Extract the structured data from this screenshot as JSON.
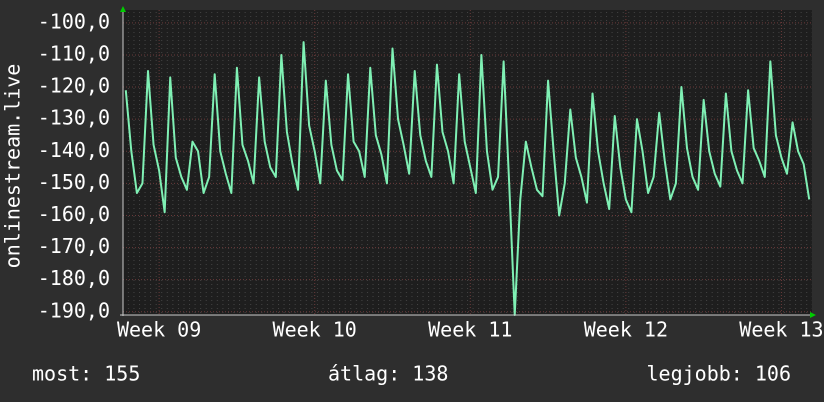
{
  "chart_data": {
    "type": "line",
    "y_label": "onlinestream.live",
    "categories": [
      null,
      null,
      null,
      null,
      null,
      null,
      "Week 09",
      null,
      null,
      null,
      null,
      null,
      null,
      null,
      null,
      null,
      null,
      null,
      null,
      null,
      null,
      null,
      null,
      null,
      null,
      null,
      null,
      null,
      null,
      null,
      null,
      null,
      null,
      null,
      "Week 10",
      null,
      null,
      null,
      null,
      null,
      null,
      null,
      null,
      null,
      null,
      null,
      null,
      null,
      null,
      null,
      null,
      null,
      null,
      null,
      null,
      null,
      null,
      null,
      null,
      null,
      null,
      null,
      "Week 11",
      null,
      null,
      null,
      null,
      null,
      null,
      null,
      null,
      null,
      null,
      null,
      null,
      null,
      null,
      null,
      null,
      null,
      null,
      null,
      null,
      null,
      null,
      null,
      null,
      null,
      null,
      null,
      "Week 12",
      null,
      null,
      null,
      null,
      null,
      null,
      null,
      null,
      null,
      null,
      null,
      null,
      null,
      null,
      null,
      null,
      null,
      null,
      null,
      null,
      null,
      null,
      null,
      null,
      null,
      null,
      null,
      "Week 13",
      null,
      null,
      null,
      null,
      null
    ],
    "series": [
      {
        "name": "onlinestream.live",
        "color": "#7ff0b4",
        "values": [
          -121,
          -140,
          -153,
          -150,
          -115,
          -138,
          -146,
          -159,
          -117,
          -142,
          -148,
          -152,
          -137,
          -140,
          -153,
          -148,
          -116,
          -140,
          -147,
          -153,
          -114,
          -138,
          -143,
          -150,
          -117,
          -137,
          -145,
          -148,
          -110,
          -134,
          -144,
          -152,
          -106,
          -132,
          -140,
          -150,
          -118,
          -138,
          -146,
          -149,
          -116,
          -137,
          -140,
          -148,
          -114,
          -135,
          -141,
          -150,
          -108,
          -130,
          -138,
          -147,
          -115,
          -135,
          -143,
          -148,
          -113,
          -134,
          -140,
          -150,
          -116,
          -137,
          -145,
          -153,
          -110,
          -140,
          -152,
          -148,
          -112,
          -150,
          -191,
          -155,
          -137,
          -145,
          -152,
          -154,
          -118,
          -140,
          -160,
          -150,
          -127,
          -142,
          -148,
          -156,
          -122,
          -140,
          -150,
          -158,
          -129,
          -145,
          -155,
          -159,
          -130,
          -140,
          -153,
          -148,
          -128,
          -143,
          -155,
          -150,
          -120,
          -139,
          -148,
          -152,
          -124,
          -140,
          -147,
          -151,
          -122,
          -140,
          -146,
          -150,
          -121,
          -139,
          -143,
          -148,
          -112,
          -135,
          -142,
          -147,
          -131,
          -140,
          -144,
          -155
        ]
      }
    ],
    "ylim": [
      -191,
      -96
    ],
    "yticks": [
      {
        "value": -100,
        "label": "-100,0"
      },
      {
        "value": -110,
        "label": "-110,0"
      },
      {
        "value": -120,
        "label": "-120,0"
      },
      {
        "value": -130,
        "label": "-130,0"
      },
      {
        "value": -140,
        "label": "-140,0"
      },
      {
        "value": -150,
        "label": "-150,0"
      },
      {
        "value": -160,
        "label": "-160,0"
      },
      {
        "value": -170,
        "label": "-170,0"
      },
      {
        "value": -180,
        "label": "-180,0"
      },
      {
        "value": -190,
        "label": "-190,0"
      }
    ],
    "grid": true,
    "footer": {
      "current": "most: 155",
      "average": "átlag: 138",
      "best": "legjobb: 106"
    }
  }
}
